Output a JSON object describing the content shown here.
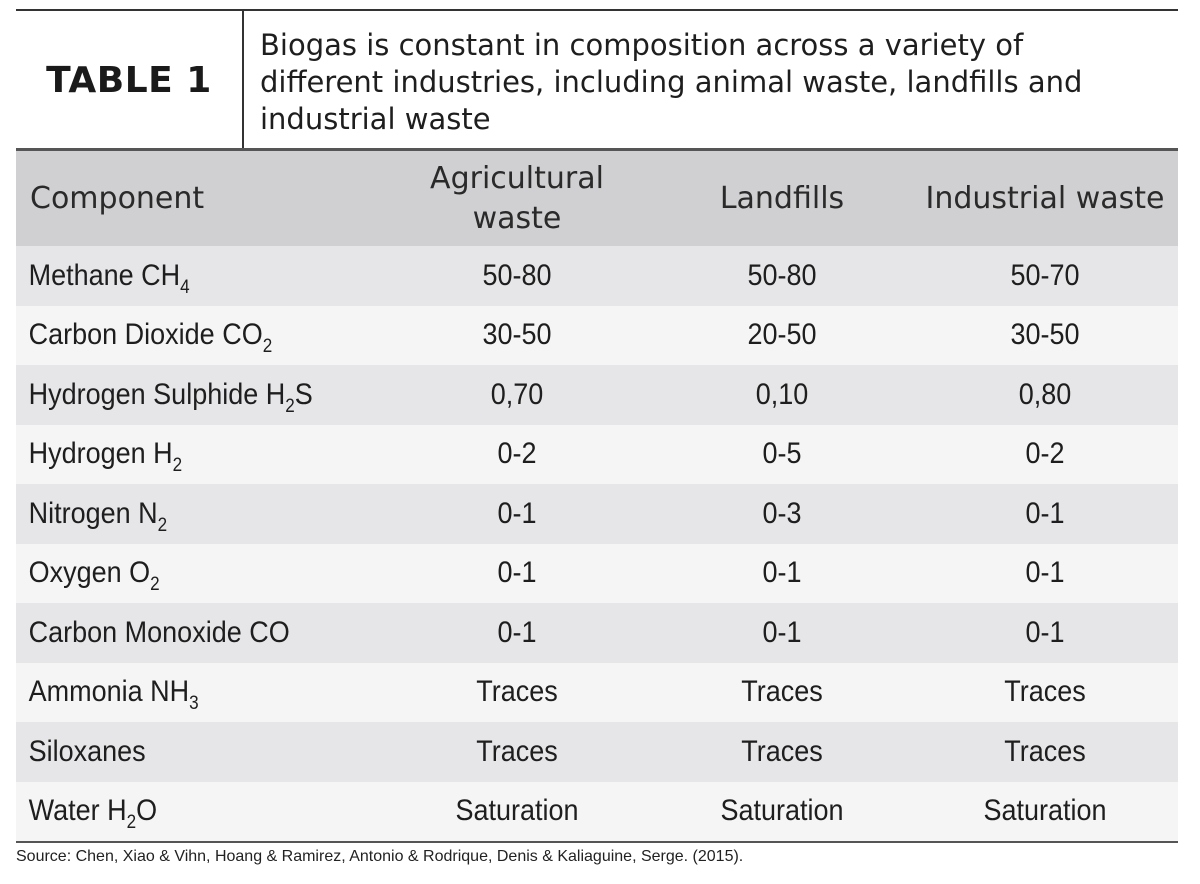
{
  "header": {
    "label": "TABLE 1",
    "caption": "Biogas is constant in composition across a variety of different industries, including animal waste, landfills and industrial waste"
  },
  "table": {
    "columns": [
      "Component",
      "Agricultural waste",
      "Landfills",
      "Industrial waste"
    ],
    "rows": [
      {
        "name": "Methane CH",
        "sub": "4",
        "suffix": "",
        "values": [
          "50-80",
          "50-80",
          "50-70"
        ]
      },
      {
        "name": "Carbon Dioxide CO",
        "sub": "2",
        "suffix": "",
        "values": [
          "30-50",
          "20-50",
          "30-50"
        ]
      },
      {
        "name": "Hydrogen Sulphide H",
        "sub": "2",
        "suffix": "S",
        "values": [
          "0,70",
          "0,10",
          "0,80"
        ]
      },
      {
        "name": "Hydrogen H",
        "sub": "2",
        "suffix": "",
        "values": [
          "0-2",
          "0-5",
          "0-2"
        ]
      },
      {
        "name": "Nitrogen N",
        "sub": "2",
        "suffix": "",
        "values": [
          "0-1",
          "0-3",
          "0-1"
        ]
      },
      {
        "name": "Oxygen O",
        "sub": "2",
        "suffix": "",
        "values": [
          "0-1",
          "0-1",
          "0-1"
        ]
      },
      {
        "name": "Carbon Monoxide CO",
        "sub": "",
        "suffix": "",
        "values": [
          "0-1",
          "0-1",
          "0-1"
        ]
      },
      {
        "name": "Ammonia NH",
        "sub": "3",
        "suffix": "",
        "values": [
          "Traces",
          "Traces",
          "Traces"
        ]
      },
      {
        "name": "Siloxanes",
        "sub": "",
        "suffix": "",
        "values": [
          "Traces",
          "Traces",
          "Traces"
        ]
      },
      {
        "name": "Water H",
        "sub": "2",
        "suffix": "O",
        "values": [
          "Saturation",
          "Saturation",
          "Saturation"
        ]
      }
    ]
  },
  "source": "Source: Chen, Xiao & Vihn, Hoang & Ramirez, Antonio & Rodrique, Denis & Kaliaguine, Serge. (2015)."
}
